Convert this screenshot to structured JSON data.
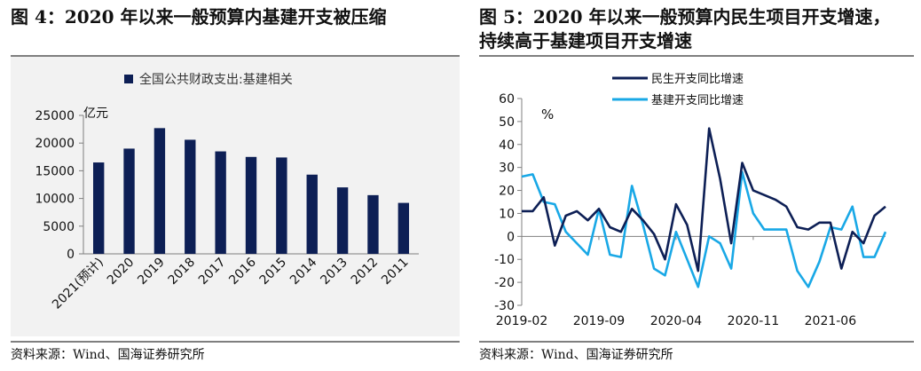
{
  "left": {
    "title": "图 4：2020 年以来一般预算内基建开支被压缩",
    "source": "资料来源：Wind、国海证券研究所"
  },
  "right": {
    "title_line1": "图 5：2020 年以来一般预算内民生项目开支增速，",
    "title_line2": "持续高于基建项目开支增速",
    "source": "资料来源：Wind、国海证券研究所"
  },
  "colors": {
    "bar": "#0d1f55",
    "line_minsheng": "#0d1f55",
    "line_jijian": "#19a8e6",
    "rule": "#7f7f7f",
    "bg_panel": "#f2f2f2"
  },
  "chart_data": [
    {
      "type": "bar",
      "legend": [
        "全国公共财政支出:基建相关"
      ],
      "unit_label": "亿元",
      "categories": [
        "2021(预计)",
        "2020",
        "2019",
        "2018",
        "2017",
        "2016",
        "2015",
        "2014",
        "2013",
        "2012",
        "2011"
      ],
      "series": [
        {
          "name": "全国公共财政支出:基建相关",
          "values": [
            16500,
            19000,
            22700,
            20600,
            18500,
            17500,
            17400,
            14300,
            12000,
            10600,
            9200
          ]
        }
      ],
      "yticks": [
        "0",
        "5000",
        "10000",
        "15000",
        "20000",
        "25000"
      ],
      "ylim": [
        0,
        25000
      ],
      "grid": false,
      "legend_position": "top"
    },
    {
      "type": "line",
      "unit_label": "%",
      "x_tick_labels": [
        "2019-02",
        "2019-09",
        "2020-04",
        "2020-11",
        "2021-06"
      ],
      "yticks": [
        "-30",
        "-20",
        "-10",
        "0",
        "10",
        "20",
        "30",
        "40",
        "50",
        "60"
      ],
      "ylim": [
        -30,
        60
      ],
      "grid": false,
      "legend_position": "top-left",
      "series": [
        {
          "name": "民生开支同比增速",
          "values": [
            11,
            11,
            17,
            -4,
            9,
            11,
            7,
            12,
            4,
            2,
            12,
            7,
            1,
            -10,
            14,
            5,
            -15,
            47,
            25,
            -3,
            32,
            20,
            18,
            16,
            13,
            4,
            3,
            6,
            6,
            -14,
            2,
            -3,
            9,
            13
          ]
        },
        {
          "name": "基建开支同比增速",
          "values": [
            26,
            27,
            15,
            14,
            2,
            -3,
            -8,
            12,
            -8,
            -9,
            22,
            5,
            -14,
            -17,
            2,
            -10,
            -22,
            0,
            -3,
            -14,
            28,
            10,
            3,
            3,
            3,
            -15,
            -22,
            -11,
            4,
            3,
            13,
            -9,
            -9,
            2
          ]
        }
      ]
    }
  ]
}
